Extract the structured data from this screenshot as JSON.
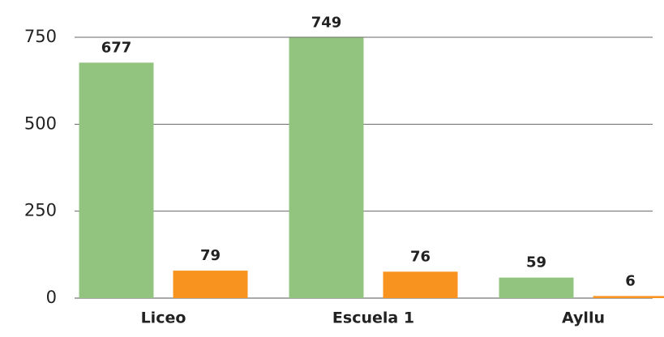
{
  "chart_data": {
    "type": "bar",
    "categories": [
      "Liceo",
      "Escuela 1",
      "Ayllu"
    ],
    "series": [
      {
        "color": "#93c47f",
        "values": [
          677,
          749,
          59
        ]
      },
      {
        "color": "#f7931e",
        "values": [
          79,
          76,
          6
        ]
      }
    ],
    "ylim": [
      0,
      750
    ],
    "yticks": [
      0,
      250,
      500,
      750
    ],
    "grid": true
  }
}
